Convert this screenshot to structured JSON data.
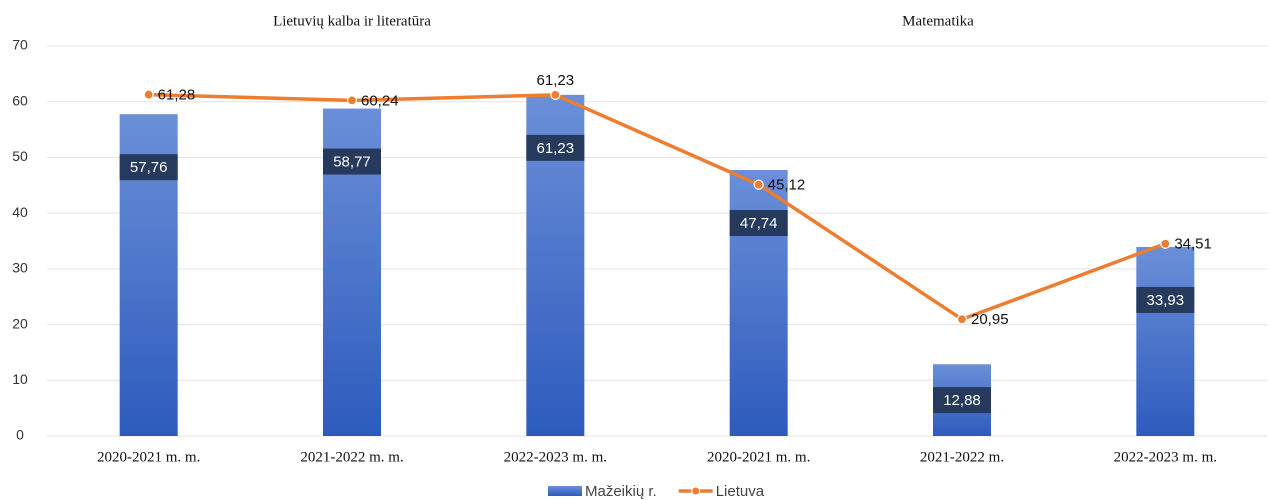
{
  "chart_data": {
    "type": "bar",
    "annotations": [
      "Lietuvių kalba ir literatūra",
      "Matematika"
    ],
    "categories": [
      "2020-2021 m. m.",
      "2021-2022 m. m.",
      "2022-2023 m. m.",
      "2020-2021 m. m.",
      "2021-2022 m.",
      "2022-2023 m. m."
    ],
    "series": [
      {
        "name": "Mažeikių r.",
        "type": "bar",
        "color": "#4472c4",
        "values": [
          57.76,
          58.77,
          61.23,
          47.74,
          12.88,
          33.93
        ],
        "value_labels": [
          "57,76",
          "58,77",
          "61,23",
          "47,74",
          "12,88",
          "33,93"
        ]
      },
      {
        "name": "Lietuva",
        "type": "line",
        "color": "#ed7d31",
        "values": [
          61.28,
          60.24,
          61.23,
          45.12,
          20.95,
          34.51
        ],
        "value_labels": [
          "61,28",
          "60,24",
          "61,23",
          "45,12",
          "20,95",
          "34,51"
        ]
      }
    ],
    "ylim": [
      0,
      70
    ],
    "yticks": [
      0,
      10,
      20,
      30,
      40,
      50,
      60,
      70
    ],
    "grid": true,
    "legend": "bottom"
  }
}
